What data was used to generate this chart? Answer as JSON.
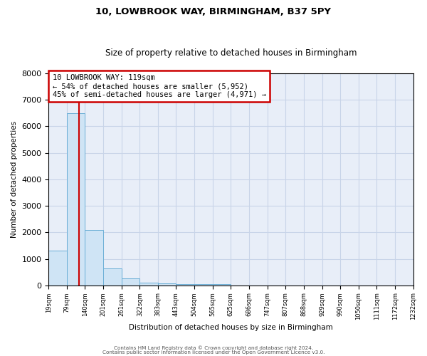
{
  "title1": "10, LOWBROOK WAY, BIRMINGHAM, B37 5PY",
  "title2": "Size of property relative to detached houses in Birmingham",
  "xlabel": "Distribution of detached houses by size in Birmingham",
  "ylabel": "Number of detached properties",
  "annotation_line1": "10 LOWBROOK WAY: 119sqm",
  "annotation_line2": "← 54% of detached houses are smaller (5,952)",
  "annotation_line3": "45% of semi-detached houses are larger (4,971) →",
  "property_size": 119,
  "bins": [
    19,
    79,
    140,
    201,
    261,
    322,
    383,
    443,
    504,
    565,
    625,
    686,
    747,
    807,
    868,
    929,
    990,
    1050,
    1111,
    1172,
    1232
  ],
  "counts": [
    1300,
    6500,
    2100,
    650,
    250,
    100,
    75,
    50,
    50,
    50,
    0,
    0,
    0,
    0,
    0,
    0,
    0,
    0,
    0,
    0
  ],
  "bar_facecolor": "#cfe4f5",
  "bar_edgecolor": "#6aaed6",
  "vline_color": "#cc0000",
  "annotation_box_edgecolor": "#cc0000",
  "grid_color": "#c8d4e8",
  "background_color": "#e8eef8",
  "ylim": [
    0,
    8000
  ],
  "yticks": [
    0,
    1000,
    2000,
    3000,
    4000,
    5000,
    6000,
    7000,
    8000
  ],
  "footer1": "Contains HM Land Registry data © Crown copyright and database right 2024.",
  "footer2": "Contains public sector information licensed under the Open Government Licence v3.0."
}
